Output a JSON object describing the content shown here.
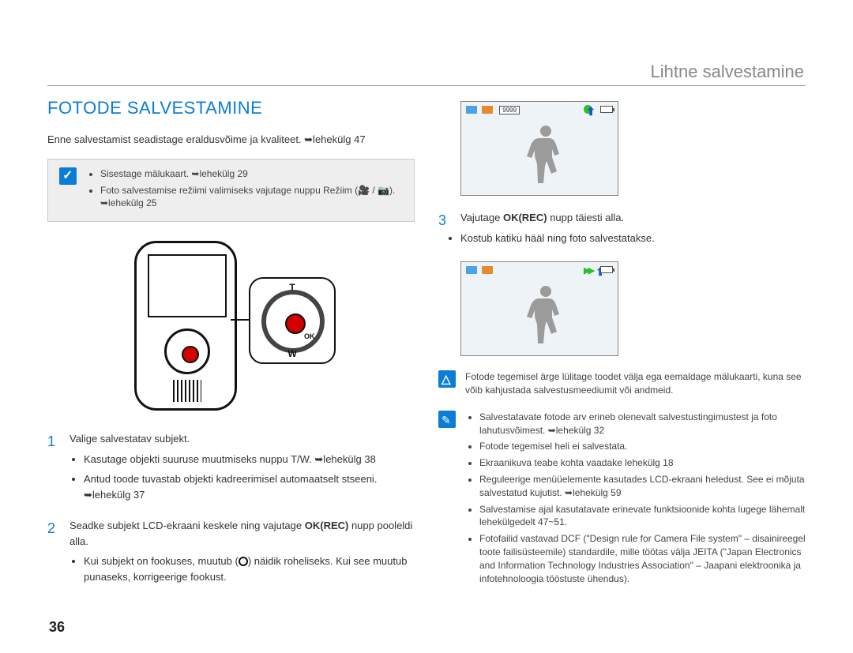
{
  "header": {
    "running_title": "Lihtne salvestamine"
  },
  "page_number": "36",
  "left": {
    "section_title": "FOTODE SALVESTAMINE",
    "intro": "Enne salvestamist seadistage eraldusvõime ja kvaliteet. ➥lehekülg 47",
    "notebox": {
      "items": [
        "Sisestage mälukaart. ➥lehekülg 29",
        "Foto salvestamise režiimi valimiseks vajutage nuppu Režiim (🎥 / 📷). ➥lehekülg 25"
      ]
    },
    "zoom_labels": {
      "t": "T",
      "w": "W",
      "ok": "OK"
    },
    "steps": [
      {
        "num": "1",
        "text": "Valige salvestatav subjekt.",
        "sub": [
          "Kasutage objekti suuruse muutmiseks nuppu T/W. ➥lehekülg 38",
          "Antud toode tuvastab objekti kadreerimisel automaatselt stseeni. ➥lehekülg 37"
        ]
      },
      {
        "num": "2",
        "text_html": "Seadke subjekt LCD-ekraani keskele ning vajutage <b>OK(REC)</b> nupp pooleldi alla.",
        "sub": [
          "Kui subjekt on fookuses, muutub (○) näidik roheliseks. Kui see muutub punaseks, korrigeerige fookust."
        ]
      }
    ]
  },
  "right": {
    "screenshot1": {
      "counter": "9999",
      "focus_state": "green-single"
    },
    "step3": {
      "num": "3",
      "text_html": "Vajutage <b>OK(REC)</b> nupp täiesti alla.",
      "sub": [
        "Kostub katiku hääl ning foto salvestatakse."
      ]
    },
    "screenshot2": {
      "focus_state": "green-double"
    },
    "warning": "Fotode tegemisel ärge lülitage toodet välja ega eemaldage mälukaarti, kuna see võib kahjustada salvestusmeediumit või andmeid.",
    "info_items": [
      "Salvestatavate fotode arv erineb olenevalt salvestustingimustest ja foto lahutusvõimest. ➥lehekülg 32",
      "Fotode tegemisel heli ei salvestata.",
      "Ekraanikuva teabe kohta vaadake lehekülg 18",
      "Reguleerige menüüelemente kasutades LCD-ekraani heledust. See ei mõjuta salvestatud kujutist. ➥lehekülg 59",
      "Salvestamise ajal kasutatavate erinevate funktsioonide kohta lugege lähemalt lehekülgedelt 47~51.",
      "Fotofailid vastavad DCF (\"Design rule for Camera File system\" – disainireegel toote failisüsteemile) standardile, mille töötas välja JEITA (\"Japan Electronics and Information Technology Industries Association\" – Jaapani elektroonika ja infotehnoloogia tööstuste ühendus)."
    ]
  }
}
